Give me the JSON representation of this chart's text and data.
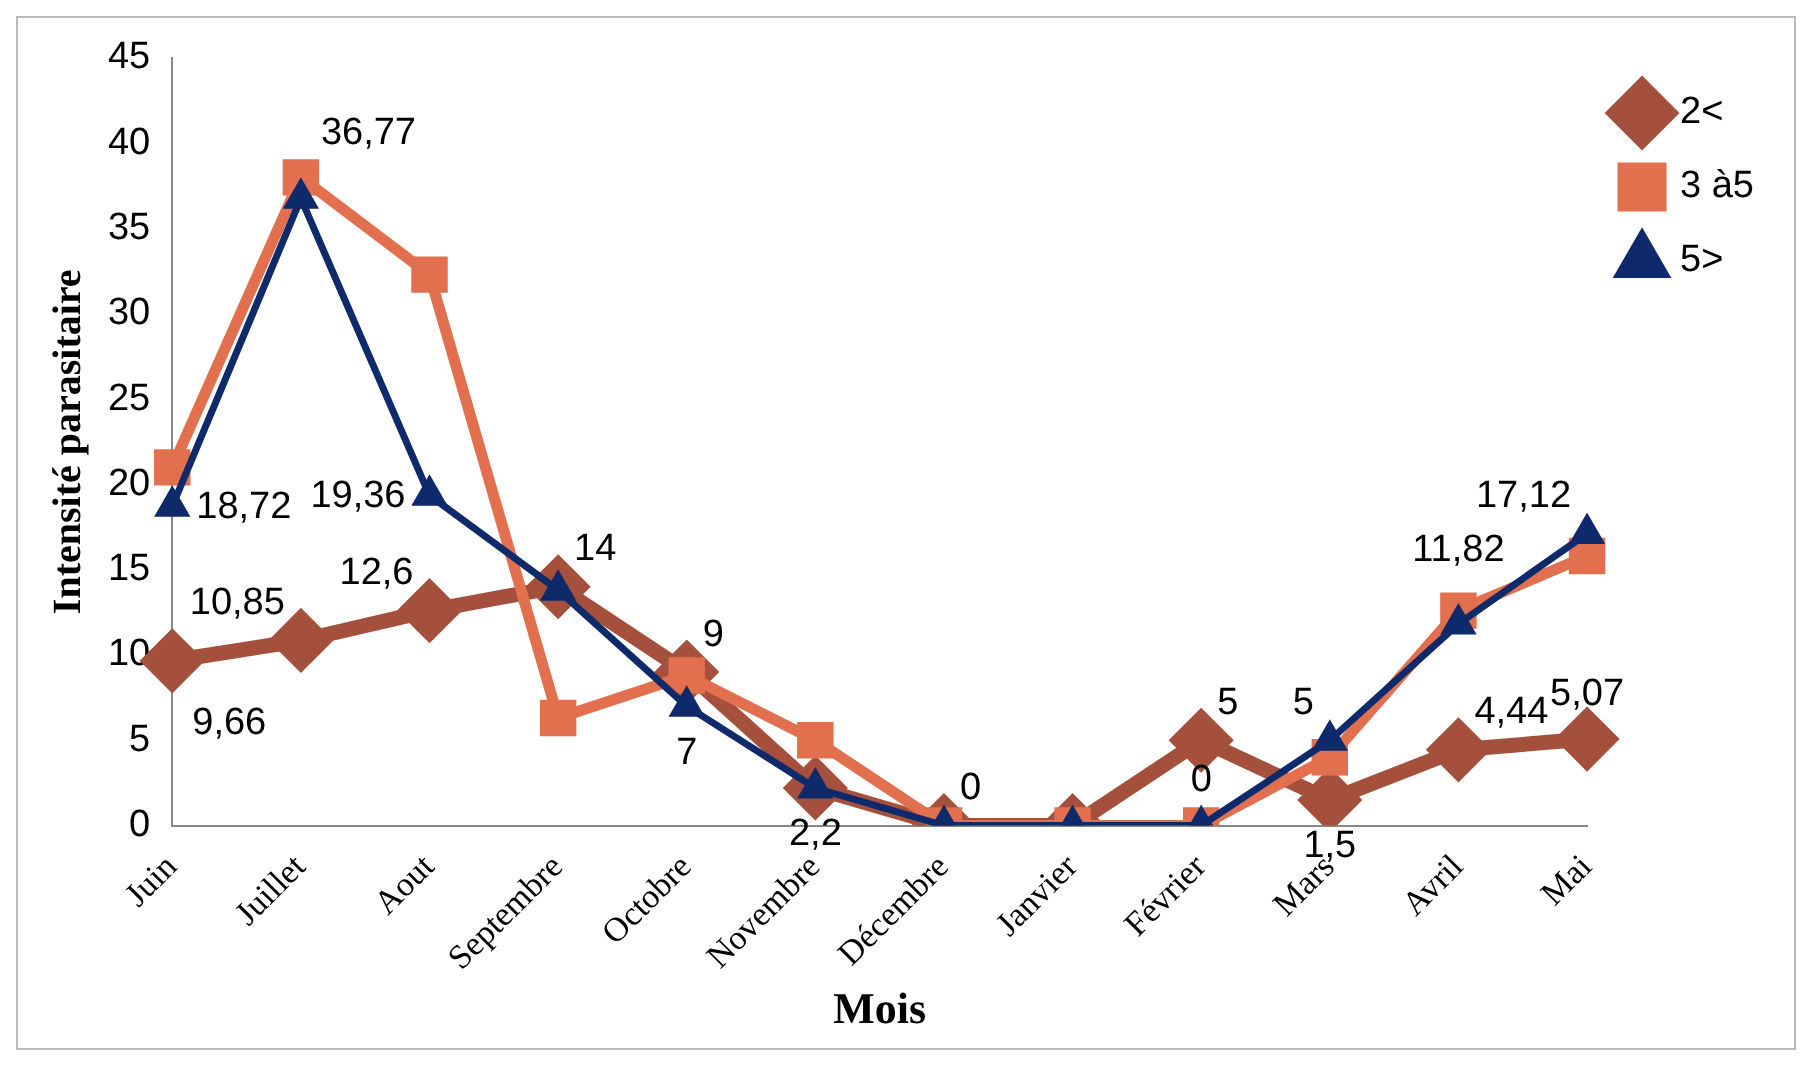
{
  "chart_data": {
    "type": "line",
    "xlabel": "Mois",
    "ylabel": "Intensité parasitaire",
    "categories": [
      "Juin",
      "Juillet",
      "Aout",
      "Septembre",
      "Octobre",
      "Novembre",
      "Décembre",
      "Janvier",
      "Février",
      "Mars",
      "Avril",
      "Mai"
    ],
    "series": [
      {
        "name": "2<",
        "color": "#a5503c",
        "marker": "diamond",
        "values": [
          9.66,
          10.85,
          12.6,
          14,
          9,
          2.2,
          0,
          0,
          5,
          1.5,
          4.44,
          5.07
        ],
        "value_labels": [
          "9,66",
          "10,85",
          "12,6",
          "14",
          "9",
          null,
          null,
          null,
          "5",
          "1,5",
          "4,44",
          "5,07"
        ]
      },
      {
        "name": "3 à5",
        "color": "#e2704f",
        "marker": "square",
        "values": [
          21,
          38,
          32.3,
          6.3,
          8.8,
          5,
          0,
          0,
          0,
          4,
          12.6,
          15.8
        ]
      },
      {
        "name": "5>",
        "color": "#0f2a6b",
        "marker": "triangle",
        "values": [
          18.72,
          36.77,
          19.36,
          13.8,
          7,
          2.2,
          0,
          0,
          0,
          5,
          11.82,
          17.12
        ],
        "value_labels": [
          "18,72",
          "36,77",
          "19,36",
          null,
          "7",
          "2,2",
          "0",
          null,
          "0",
          "5",
          "11,82",
          "17,12"
        ]
      }
    ],
    "ylim": [
      0,
      45
    ],
    "yticks": [
      0,
      5,
      10,
      15,
      20,
      25,
      30,
      35,
      40,
      45
    ],
    "grid": false,
    "legend": "top right"
  }
}
